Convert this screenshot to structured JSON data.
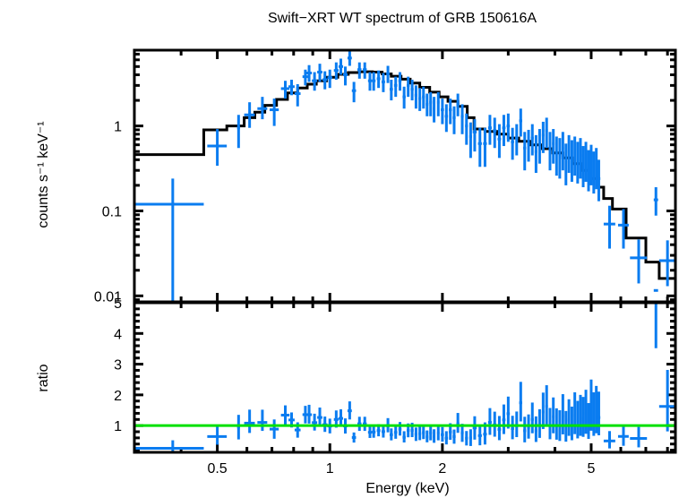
{
  "chart_data": [
    {
      "panel": "spectrum",
      "type": "scatter",
      "title": "Swift−XRT WT spectrum of GRB 150616A",
      "xlabel": "Energy (keV)",
      "ylabel": "counts s⁻¹ keV⁻¹",
      "xscale": "log",
      "yscale": "log",
      "xlim": [
        0.3,
        8.4
      ],
      "ylim": [
        0.0085,
        7.8
      ],
      "yticks": [
        {
          "v": 0.01,
          "label": "0.01"
        },
        {
          "v": 0.1,
          "label": "0.1"
        },
        {
          "v": 1,
          "label": "1"
        }
      ],
      "colors": {
        "data": "#0a7cf0",
        "model": "#000000"
      },
      "model_steps": [
        [
          0.3,
          0.46
        ],
        [
          0.46,
          0.9
        ],
        [
          0.53,
          1.0
        ],
        [
          0.59,
          1.25
        ],
        [
          0.63,
          1.45
        ],
        [
          0.67,
          1.75
        ],
        [
          0.72,
          2.05
        ],
        [
          0.77,
          2.45
        ],
        [
          0.82,
          2.8
        ],
        [
          0.87,
          3.1
        ],
        [
          0.92,
          3.4
        ],
        [
          0.98,
          3.75
        ],
        [
          1.05,
          4.05
        ],
        [
          1.12,
          4.25
        ],
        [
          1.2,
          4.35
        ],
        [
          1.3,
          4.3
        ],
        [
          1.38,
          4.1
        ],
        [
          1.46,
          3.85
        ],
        [
          1.55,
          3.55
        ],
        [
          1.64,
          3.2
        ],
        [
          1.74,
          2.85
        ],
        [
          1.85,
          2.5
        ],
        [
          1.96,
          2.2
        ],
        [
          2.07,
          1.95
        ],
        [
          2.2,
          1.7
        ],
        [
          2.33,
          1.25
        ],
        [
          2.43,
          0.92
        ],
        [
          2.6,
          0.86
        ],
        [
          2.8,
          0.8
        ],
        [
          3.0,
          0.72
        ],
        [
          3.2,
          0.66
        ],
        [
          3.45,
          0.6
        ],
        [
          3.7,
          0.54
        ],
        [
          3.95,
          0.48
        ],
        [
          4.2,
          0.42
        ],
        [
          4.45,
          0.36
        ],
        [
          4.7,
          0.3
        ],
        [
          4.95,
          0.24
        ],
        [
          5.2,
          0.19
        ],
        [
          5.4,
          0.14
        ],
        [
          5.7,
          0.105
        ],
        [
          6.2,
          0.048
        ],
        [
          7.0,
          0.025
        ],
        [
          7.6,
          0.016
        ],
        [
          8.4,
          0.016
        ]
      ],
      "points": [
        {
          "x": 0.38,
          "xerr": 0.08,
          "y": 0.12,
          "ylo": 0.0085,
          "yhi": 0.24
        },
        {
          "x": 0.5,
          "xerr": 0.03,
          "y": 0.58,
          "ylo": 0.34,
          "yhi": 0.92
        },
        {
          "x": 0.57,
          "xerr": 0.005,
          "y": 0.95,
          "ylo": 0.55,
          "yhi": 1.35
        },
        {
          "x": 0.61,
          "xerr": 0.02,
          "y": 1.35,
          "ylo": 0.95,
          "yhi": 1.9
        },
        {
          "x": 0.66,
          "xerr": 0.02,
          "y": 1.6,
          "ylo": 1.2,
          "yhi": 2.2
        },
        {
          "x": 0.71,
          "xerr": 0.02,
          "y": 1.55,
          "ylo": 1.0,
          "yhi": 2.1
        },
        {
          "x": 0.76,
          "xerr": 0.02,
          "y": 2.75,
          "ylo": 2.1,
          "yhi": 3.4
        },
        {
          "x": 0.79,
          "xerr": 0.015,
          "y": 2.9,
          "ylo": 2.3,
          "yhi": 3.5
        },
        {
          "x": 0.82,
          "xerr": 0.015,
          "y": 2.4,
          "ylo": 1.7,
          "yhi": 3.1
        },
        {
          "x": 0.86,
          "xerr": 0.015,
          "y": 3.8,
          "ylo": 3.0,
          "yhi": 4.6
        },
        {
          "x": 0.88,
          "xerr": 0.015,
          "y": 4.2,
          "ylo": 3.3,
          "yhi": 5.2
        },
        {
          "x": 0.91,
          "xerr": 0.015,
          "y": 3.4,
          "ylo": 2.6,
          "yhi": 4.3
        },
        {
          "x": 0.94,
          "xerr": 0.015,
          "y": 4.3,
          "ylo": 3.3,
          "yhi": 5.4
        },
        {
          "x": 0.97,
          "xerr": 0.015,
          "y": 3.5,
          "ylo": 2.7,
          "yhi": 4.4
        },
        {
          "x": 1.0,
          "xerr": 0.015,
          "y": 3.7,
          "ylo": 2.8,
          "yhi": 4.6
        },
        {
          "x": 1.04,
          "xerr": 0.015,
          "y": 4.5,
          "ylo": 3.5,
          "yhi": 5.6
        },
        {
          "x": 1.07,
          "xerr": 0.015,
          "y": 5.0,
          "ylo": 4.0,
          "yhi": 6.2
        },
        {
          "x": 1.1,
          "xerr": 0.015,
          "y": 4.0,
          "ylo": 3.0,
          "yhi": 5.0
        },
        {
          "x": 1.13,
          "xerr": 0.015,
          "y": 6.3,
          "ylo": 5.1,
          "yhi": 7.6
        },
        {
          "x": 1.16,
          "xerr": 0.015,
          "y": 2.6,
          "ylo": 1.9,
          "yhi": 3.3
        },
        {
          "x": 1.2,
          "xerr": 0.015,
          "y": 4.6,
          "ylo": 3.6,
          "yhi": 5.6
        },
        {
          "x": 1.24,
          "xerr": 0.015,
          "y": 4.6,
          "ylo": 3.6,
          "yhi": 5.6
        },
        {
          "x": 1.28,
          "xerr": 0.015,
          "y": 3.4,
          "ylo": 2.6,
          "yhi": 4.3
        },
        {
          "x": 1.31,
          "xerr": 0.015,
          "y": 3.4,
          "ylo": 2.6,
          "yhi": 4.3
        },
        {
          "x": 1.35,
          "xerr": 0.015,
          "y": 3.6,
          "ylo": 2.8,
          "yhi": 4.5
        },
        {
          "x": 1.39,
          "xerr": 0.015,
          "y": 3.3,
          "ylo": 2.5,
          "yhi": 4.2
        },
        {
          "x": 1.43,
          "xerr": 0.015,
          "y": 4.1,
          "ylo": 3.2,
          "yhi": 5.1
        },
        {
          "x": 1.46,
          "xerr": 0.015,
          "y": 2.7,
          "ylo": 2.0,
          "yhi": 3.5
        },
        {
          "x": 1.5,
          "xerr": 0.015,
          "y": 3.0,
          "ylo": 2.2,
          "yhi": 3.8
        },
        {
          "x": 1.54,
          "xerr": 0.015,
          "y": 3.4,
          "ylo": 2.6,
          "yhi": 4.3
        },
        {
          "x": 1.58,
          "xerr": 0.015,
          "y": 2.2,
          "ylo": 1.6,
          "yhi": 2.9
        },
        {
          "x": 1.62,
          "xerr": 0.015,
          "y": 3.0,
          "ylo": 2.2,
          "yhi": 3.8
        },
        {
          "x": 1.66,
          "xerr": 0.015,
          "y": 2.7,
          "ylo": 2.0,
          "yhi": 3.5
        },
        {
          "x": 1.7,
          "xerr": 0.015,
          "y": 2.3,
          "ylo": 1.6,
          "yhi": 3.0
        },
        {
          "x": 1.74,
          "xerr": 0.015,
          "y": 2.1,
          "ylo": 1.5,
          "yhi": 2.8
        },
        {
          "x": 1.78,
          "xerr": 0.015,
          "y": 2.2,
          "ylo": 1.6,
          "yhi": 2.9
        },
        {
          "x": 1.82,
          "xerr": 0.015,
          "y": 1.8,
          "ylo": 1.3,
          "yhi": 2.4
        },
        {
          "x": 1.86,
          "xerr": 0.015,
          "y": 1.9,
          "ylo": 1.3,
          "yhi": 2.5
        },
        {
          "x": 1.9,
          "xerr": 0.015,
          "y": 1.6,
          "ylo": 1.1,
          "yhi": 2.2
        },
        {
          "x": 1.95,
          "xerr": 0.015,
          "y": 1.9,
          "ylo": 1.3,
          "yhi": 2.5
        },
        {
          "x": 2.0,
          "xerr": 0.02,
          "y": 1.55,
          "ylo": 1.05,
          "yhi": 2.1
        },
        {
          "x": 2.05,
          "xerr": 0.02,
          "y": 1.3,
          "ylo": 0.85,
          "yhi": 1.8
        },
        {
          "x": 2.1,
          "xerr": 0.02,
          "y": 1.55,
          "ylo": 1.05,
          "yhi": 2.1
        },
        {
          "x": 2.15,
          "xerr": 0.02,
          "y": 1.25,
          "ylo": 0.8,
          "yhi": 1.7
        },
        {
          "x": 2.2,
          "xerr": 0.02,
          "y": 1.8,
          "ylo": 1.3,
          "yhi": 2.4
        },
        {
          "x": 2.26,
          "xerr": 0.02,
          "y": 1.3,
          "ylo": 0.8,
          "yhi": 1.8
        },
        {
          "x": 2.32,
          "xerr": 0.02,
          "y": 1.0,
          "ylo": 0.6,
          "yhi": 1.4
        },
        {
          "x": 2.38,
          "xerr": 0.02,
          "y": 0.75,
          "ylo": 0.42,
          "yhi": 1.1
        },
        {
          "x": 2.44,
          "xerr": 0.03,
          "y": 0.85,
          "ylo": 0.5,
          "yhi": 1.2
        },
        {
          "x": 2.52,
          "xerr": 0.03,
          "y": 0.62,
          "ylo": 0.33,
          "yhi": 0.95
        },
        {
          "x": 2.6,
          "xerr": 0.03,
          "y": 0.62,
          "ylo": 0.33,
          "yhi": 0.95
        },
        {
          "x": 2.68,
          "xerr": 0.03,
          "y": 0.95,
          "ylo": 0.6,
          "yhi": 1.35
        },
        {
          "x": 2.76,
          "xerr": 0.03,
          "y": 0.88,
          "ylo": 0.55,
          "yhi": 1.25
        },
        {
          "x": 2.84,
          "xerr": 0.03,
          "y": 0.7,
          "ylo": 0.42,
          "yhi": 1.05
        },
        {
          "x": 2.92,
          "xerr": 0.03,
          "y": 0.95,
          "ylo": 0.58,
          "yhi": 1.35
        },
        {
          "x": 3.0,
          "xerr": 0.03,
          "y": 1.0,
          "ylo": 0.65,
          "yhi": 1.4
        },
        {
          "x": 3.08,
          "xerr": 0.03,
          "y": 0.65,
          "ylo": 0.4,
          "yhi": 0.95
        },
        {
          "x": 3.16,
          "xerr": 0.03,
          "y": 0.72,
          "ylo": 0.45,
          "yhi": 1.05
        },
        {
          "x": 3.24,
          "xerr": 0.03,
          "y": 1.15,
          "ylo": 0.75,
          "yhi": 1.6
        },
        {
          "x": 3.32,
          "xerr": 0.03,
          "y": 0.55,
          "ylo": 0.3,
          "yhi": 0.85
        },
        {
          "x": 3.4,
          "xerr": 0.03,
          "y": 0.62,
          "ylo": 0.38,
          "yhi": 0.9
        },
        {
          "x": 3.48,
          "xerr": 0.03,
          "y": 0.72,
          "ylo": 0.45,
          "yhi": 1.05
        },
        {
          "x": 3.56,
          "xerr": 0.03,
          "y": 0.5,
          "ylo": 0.28,
          "yhi": 0.78
        },
        {
          "x": 3.64,
          "xerr": 0.03,
          "y": 0.62,
          "ylo": 0.36,
          "yhi": 0.92
        },
        {
          "x": 3.72,
          "xerr": 0.03,
          "y": 0.78,
          "ylo": 0.48,
          "yhi": 1.12
        },
        {
          "x": 3.8,
          "xerr": 0.03,
          "y": 0.88,
          "ylo": 0.55,
          "yhi": 1.25
        },
        {
          "x": 3.88,
          "xerr": 0.03,
          "y": 0.55,
          "ylo": 0.3,
          "yhi": 0.85
        },
        {
          "x": 3.96,
          "xerr": 0.03,
          "y": 0.62,
          "ylo": 0.36,
          "yhi": 0.92
        },
        {
          "x": 4.04,
          "xerr": 0.03,
          "y": 0.48,
          "ylo": 0.26,
          "yhi": 0.75
        },
        {
          "x": 4.12,
          "xerr": 0.03,
          "y": 0.45,
          "ylo": 0.24,
          "yhi": 0.72
        },
        {
          "x": 4.2,
          "xerr": 0.03,
          "y": 0.55,
          "ylo": 0.3,
          "yhi": 0.85
        },
        {
          "x": 4.28,
          "xerr": 0.03,
          "y": 0.38,
          "ylo": 0.2,
          "yhi": 0.62
        },
        {
          "x": 4.36,
          "xerr": 0.03,
          "y": 0.5,
          "ylo": 0.28,
          "yhi": 0.78
        },
        {
          "x": 4.44,
          "xerr": 0.03,
          "y": 0.42,
          "ylo": 0.22,
          "yhi": 0.68
        },
        {
          "x": 4.52,
          "xerr": 0.03,
          "y": 0.48,
          "ylo": 0.26,
          "yhi": 0.75
        },
        {
          "x": 4.6,
          "xerr": 0.03,
          "y": 0.4,
          "ylo": 0.21,
          "yhi": 0.65
        },
        {
          "x": 4.68,
          "xerr": 0.03,
          "y": 0.45,
          "ylo": 0.24,
          "yhi": 0.72
        },
        {
          "x": 4.76,
          "xerr": 0.03,
          "y": 0.36,
          "ylo": 0.19,
          "yhi": 0.58
        },
        {
          "x": 4.84,
          "xerr": 0.03,
          "y": 0.42,
          "ylo": 0.22,
          "yhi": 0.65
        },
        {
          "x": 4.92,
          "xerr": 0.03,
          "y": 0.32,
          "ylo": 0.17,
          "yhi": 0.52
        },
        {
          "x": 5.0,
          "xerr": 0.03,
          "y": 0.38,
          "ylo": 0.2,
          "yhi": 0.6
        },
        {
          "x": 5.08,
          "xerr": 0.03,
          "y": 0.3,
          "ylo": 0.16,
          "yhi": 0.5
        },
        {
          "x": 5.16,
          "xerr": 0.03,
          "y": 0.34,
          "ylo": 0.18,
          "yhi": 0.55
        },
        {
          "x": 5.24,
          "xerr": 0.05,
          "y": 0.24,
          "ylo": 0.13,
          "yhi": 0.4
        },
        {
          "x": 5.6,
          "xerr": 0.2,
          "y": 0.07,
          "ylo": 0.036,
          "yhi": 0.115
        },
        {
          "x": 6.1,
          "xerr": 0.2,
          "y": 0.068,
          "ylo": 0.036,
          "yhi": 0.105
        },
        {
          "x": 6.7,
          "xerr": 0.35,
          "y": 0.028,
          "ylo": 0.014,
          "yhi": 0.046
        },
        {
          "x": 7.45,
          "xerr": 0.1,
          "y": 0.135,
          "ylo": 0.088,
          "yhi": 0.19
        },
        {
          "x": 8.0,
          "xerr": 0.4,
          "y": 0.026,
          "ylo": 0.013,
          "yhi": 0.045
        }
      ]
    },
    {
      "panel": "ratio",
      "type": "scatter",
      "xlabel": "Energy (keV)",
      "ylabel": "ratio",
      "xscale": "log",
      "yscale": "linear",
      "xlim": [
        0.3,
        8.4
      ],
      "ylim": [
        0.13,
        5.0
      ],
      "xticks": [
        {
          "v": 0.5,
          "label": "0.5"
        },
        {
          "v": 1,
          "label": "1"
        },
        {
          "v": 2,
          "label": "2"
        },
        {
          "v": 5,
          "label": "5"
        }
      ],
      "yticks": [
        {
          "v": 1,
          "label": "1"
        },
        {
          "v": 2,
          "label": "2"
        },
        {
          "v": 3,
          "label": "3"
        },
        {
          "v": 4,
          "label": "4"
        },
        {
          "v": 5,
          "label": "5"
        }
      ],
      "reference_line": {
        "y": 1,
        "color": "#00e000"
      },
      "colors": {
        "data": "#0a7cf0"
      }
    }
  ]
}
